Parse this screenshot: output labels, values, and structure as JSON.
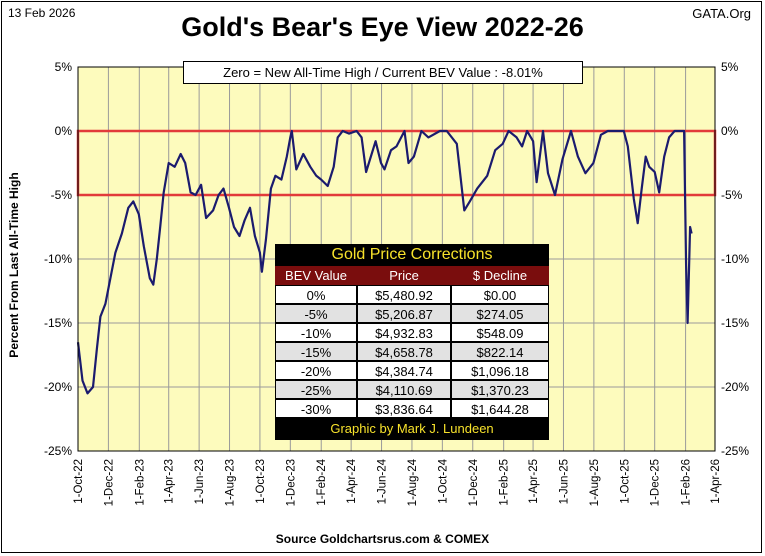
{
  "header": {
    "date": "13 Feb 2026",
    "brand": "GATA.Org"
  },
  "footer": {
    "source": "Source Goldchartsrus.com & COMEX"
  },
  "colors": {
    "plot_bg": "#fdfbbd",
    "line": "#1b1b6e",
    "band": "#e23a3a",
    "gridline": "#9a9a9a",
    "table_header": "#7a0d0d",
    "table_text_accent": "#f7e22b"
  },
  "chart_data": {
    "type": "line",
    "title": "Gold's Bear's Eye View 2022-26",
    "subtitle": "Zero = New All-Time High / Current  BEV Value : -8.01%",
    "ylabel": "Percent  From Last All-Time High",
    "ylim": [
      -25,
      5
    ],
    "yticks": [
      "5%",
      "0%",
      "-5%",
      "-10%",
      "-15%",
      "-20%",
      "-25%"
    ],
    "ytick_values": [
      5,
      0,
      -5,
      -10,
      -15,
      -20,
      -25
    ],
    "xlim": [
      "2022-10-01",
      "2026-04-01"
    ],
    "xticks": [
      "1-Oct-22",
      "1-Dec-22",
      "1-Feb-23",
      "1-Apr-23",
      "1-Jun-23",
      "1-Aug-23",
      "1-Oct-23",
      "1-Dec-23",
      "1-Feb-24",
      "1-Apr-24",
      "1-Jun-24",
      "1-Aug-24",
      "1-Oct-24",
      "1-Dec-24",
      "1-Feb-25",
      "1-Apr-25",
      "1-Jun-25",
      "1-Aug-25",
      "1-Oct-25",
      "1-Dec-25",
      "1-Feb-26",
      "1-Apr-26"
    ],
    "grid": true,
    "highlight_band": [
      0,
      -5
    ],
    "series": [
      {
        "x": [
          "2022-10-01",
          "2022-10-10",
          "2022-10-20",
          "2022-10-31",
          "2022-11-08",
          "2022-11-15",
          "2022-11-25",
          "2022-12-05",
          "2022-12-15",
          "2022-12-28",
          "2023-01-10",
          "2023-01-20",
          "2023-01-31",
          "2023-02-10",
          "2023-02-22",
          "2023-03-01",
          "2023-03-08",
          "2023-03-15",
          "2023-03-22",
          "2023-04-01",
          "2023-04-13",
          "2023-04-25",
          "2023-05-04",
          "2023-05-15",
          "2023-05-25",
          "2023-06-05",
          "2023-06-15",
          "2023-06-29",
          "2023-07-10",
          "2023-07-20",
          "2023-07-31",
          "2023-08-10",
          "2023-08-21",
          "2023-08-31",
          "2023-09-11",
          "2023-09-21",
          "2023-10-01",
          "2023-10-05",
          "2023-10-13",
          "2023-10-23",
          "2023-11-01",
          "2023-11-13",
          "2023-11-24",
          "2023-12-01",
          "2023-12-04",
          "2023-12-13",
          "2023-12-27",
          "2024-01-10",
          "2024-01-22",
          "2024-02-01",
          "2024-02-14",
          "2024-02-26",
          "2024-03-05",
          "2024-03-15",
          "2024-03-28",
          "2024-04-12",
          "2024-04-22",
          "2024-05-01",
          "2024-05-20",
          "2024-05-31",
          "2024-06-07",
          "2024-06-20",
          "2024-07-01",
          "2024-07-17",
          "2024-07-25",
          "2024-08-05",
          "2024-08-20",
          "2024-09-03",
          "2024-09-26",
          "2024-10-10",
          "2024-10-30",
          "2024-11-14",
          "2024-11-25",
          "2024-12-10",
          "2024-12-30",
          "2025-01-15",
          "2025-01-30",
          "2025-02-11",
          "2025-02-27",
          "2025-03-10",
          "2025-03-20",
          "2025-04-01",
          "2025-04-08",
          "2025-04-21",
          "2025-05-01",
          "2025-05-15",
          "2025-05-30",
          "2025-06-16",
          "2025-06-30",
          "2025-07-15",
          "2025-07-31",
          "2025-08-15",
          "2025-08-29",
          "2025-09-15",
          "2025-09-30",
          "2025-10-08",
          "2025-10-20",
          "2025-10-28",
          "2025-11-05",
          "2025-11-13",
          "2025-11-20",
          "2025-12-01",
          "2025-12-10",
          "2025-12-20",
          "2025-12-30",
          "2026-01-10",
          "2026-01-20",
          "2026-01-29",
          "2026-02-02",
          "2026-02-05",
          "2026-02-10",
          "2026-02-13"
        ],
        "values": [
          -16.5,
          -19.5,
          -20.5,
          -20,
          -17,
          -14.5,
          -13.5,
          -11.5,
          -9.5,
          -8,
          -6,
          -5.5,
          -6.5,
          -9,
          -11.5,
          -12,
          -10,
          -7.5,
          -4.8,
          -2.5,
          -2.8,
          -1.8,
          -2.5,
          -4.8,
          -5,
          -4.2,
          -6.8,
          -6.2,
          -5,
          -4.5,
          -6,
          -7.5,
          -8.2,
          -7,
          -6,
          -8.2,
          -9.5,
          -11,
          -8.5,
          -4.5,
          -3.5,
          -3.8,
          -2,
          -0.5,
          0,
          -3,
          -1.8,
          -2.8,
          -3.5,
          -3.8,
          -4.3,
          -2.8,
          -0.5,
          0,
          -0.2,
          0,
          -0.5,
          -3.2,
          -0.8,
          -2.5,
          -3,
          -1.5,
          -1.2,
          0,
          -2.5,
          -2,
          0,
          -0.5,
          0,
          0,
          -1,
          -6.2,
          -5.5,
          -4.5,
          -3.5,
          -1.5,
          -1,
          0,
          -0.5,
          -1.2,
          0,
          -0.8,
          -4,
          0,
          -3.3,
          -5,
          -2.2,
          0,
          -2,
          -3.3,
          -2.5,
          -0.3,
          0,
          0,
          0,
          -1.2,
          -5.3,
          -7.2,
          -4.5,
          -2,
          -2.8,
          -3.2,
          -4.8,
          -2,
          -0.5,
          0,
          0,
          0,
          -10.5,
          -15,
          -7.5,
          -8.01
        ]
      }
    ]
  },
  "table": {
    "title": "Gold Price Corrections",
    "headers": [
      "BEV Value",
      "Price",
      "$ Decline"
    ],
    "rows": [
      [
        "0%",
        "$5,480.92",
        "$0.00"
      ],
      [
        "-5%",
        "$5,206.87",
        "$274.05"
      ],
      [
        "-10%",
        "$4,932.83",
        "$548.09"
      ],
      [
        "-15%",
        "$4,658.78",
        "$822.14"
      ],
      [
        "-20%",
        "$4,384.74",
        "$1,096.18"
      ],
      [
        "-25%",
        "$4,110.69",
        "$1,370.23"
      ],
      [
        "-30%",
        "$3,836.64",
        "$1,644.28"
      ]
    ],
    "footer": "Graphic by Mark J. Lundeen"
  }
}
